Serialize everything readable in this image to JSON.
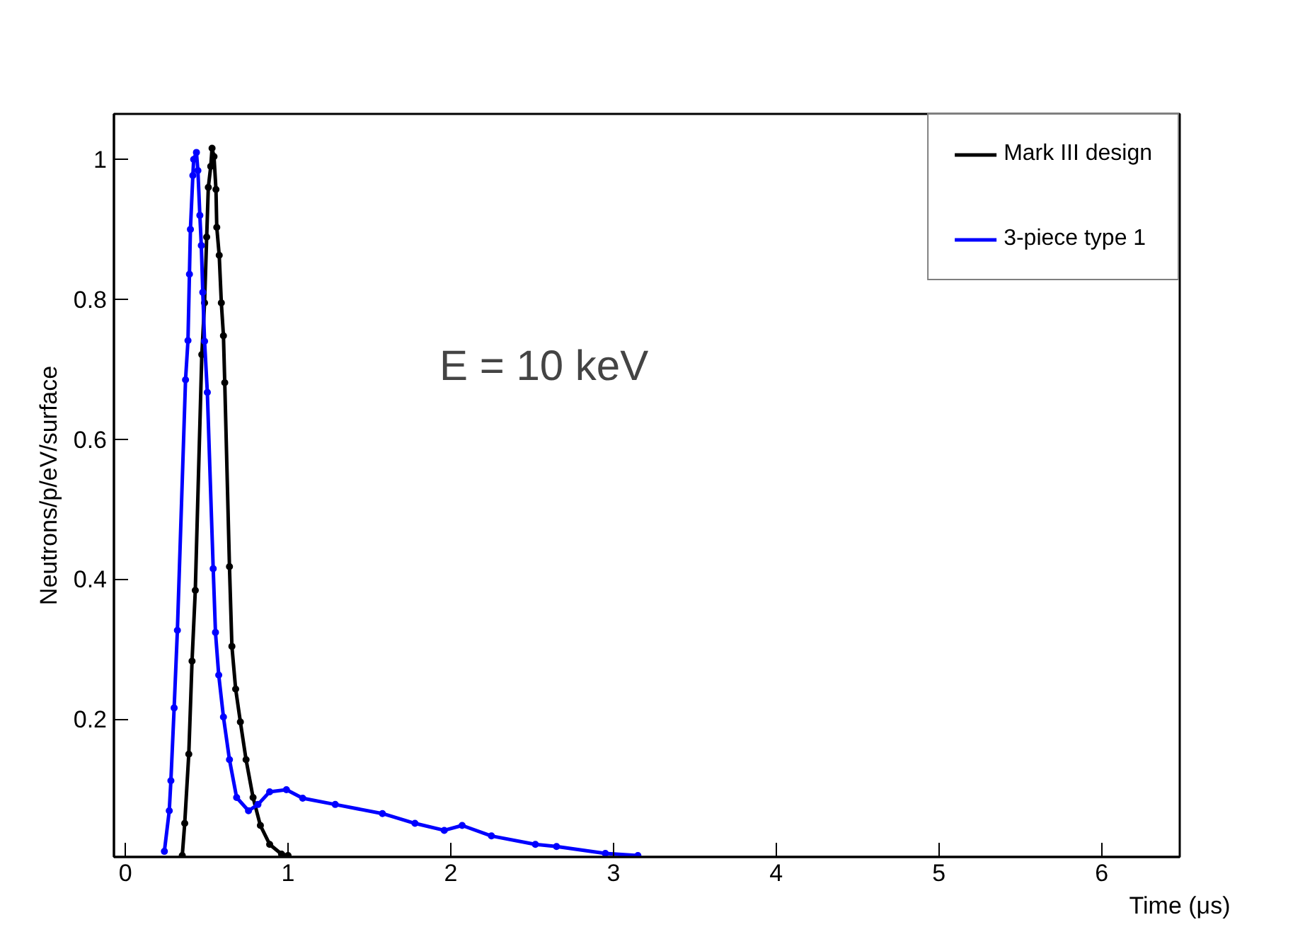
{
  "chart_data": {
    "type": "line",
    "xlabel": "Time (μs)",
    "ylabel": "Neutrons/p/eV/surface",
    "annotations": [
      "E = 10 keV"
    ],
    "xlim": [
      -0.07,
      6.48
    ],
    "ylim": [
      0.003,
      1.065
    ],
    "xticks": [
      0,
      1,
      2,
      3,
      4,
      5,
      6
    ],
    "yticks": [
      0.2,
      0.4,
      0.6,
      0.8,
      1
    ],
    "grid": false,
    "legend": "top right",
    "marker": "circle",
    "line_style": "solid",
    "series": [
      {
        "name": "Mark III design",
        "color": "#000000",
        "x": [
          0.35,
          0.365,
          0.39,
          0.41,
          0.43,
          0.47,
          0.487,
          0.5,
          0.51,
          0.525,
          0.533,
          0.545,
          0.557,
          0.562,
          0.577,
          0.59,
          0.603,
          0.611,
          0.64,
          0.655,
          0.678,
          0.707,
          0.742,
          0.785,
          0.83,
          0.887,
          0.96,
          1.0
        ],
        "values": [
          0.005,
          0.051,
          0.15,
          0.283,
          0.384,
          0.721,
          0.795,
          0.889,
          0.96,
          0.99,
          1.016,
          1.004,
          0.957,
          0.903,
          0.863,
          0.795,
          0.748,
          0.681,
          0.418,
          0.304,
          0.243,
          0.196,
          0.142,
          0.088,
          0.048,
          0.021,
          0.007,
          0.005
        ]
      },
      {
        "name": "3-piece type 1",
        "color": "#0000ff",
        "x": [
          0.24,
          0.27,
          0.28,
          0.3,
          0.32,
          0.37,
          0.385,
          0.394,
          0.4,
          0.415,
          0.42,
          0.437,
          0.446,
          0.458,
          0.467,
          0.476,
          0.487,
          0.504,
          0.54,
          0.554,
          0.574,
          0.603,
          0.64,
          0.684,
          0.757,
          0.815,
          0.887,
          0.99,
          1.09,
          1.29,
          1.58,
          1.78,
          1.96,
          2.07,
          2.25,
          2.52,
          2.65,
          2.95,
          3.15
        ],
        "values": [
          0.011,
          0.069,
          0.112,
          0.216,
          0.327,
          0.685,
          0.741,
          0.836,
          0.9,
          0.977,
          1.0,
          1.01,
          0.984,
          0.92,
          0.877,
          0.81,
          0.74,
          0.667,
          0.415,
          0.324,
          0.263,
          0.203,
          0.142,
          0.088,
          0.069,
          0.078,
          0.096,
          0.099,
          0.087,
          0.078,
          0.065,
          0.051,
          0.041,
          0.048,
          0.033,
          0.021,
          0.018,
          0.008,
          0.005
        ]
      }
    ]
  }
}
